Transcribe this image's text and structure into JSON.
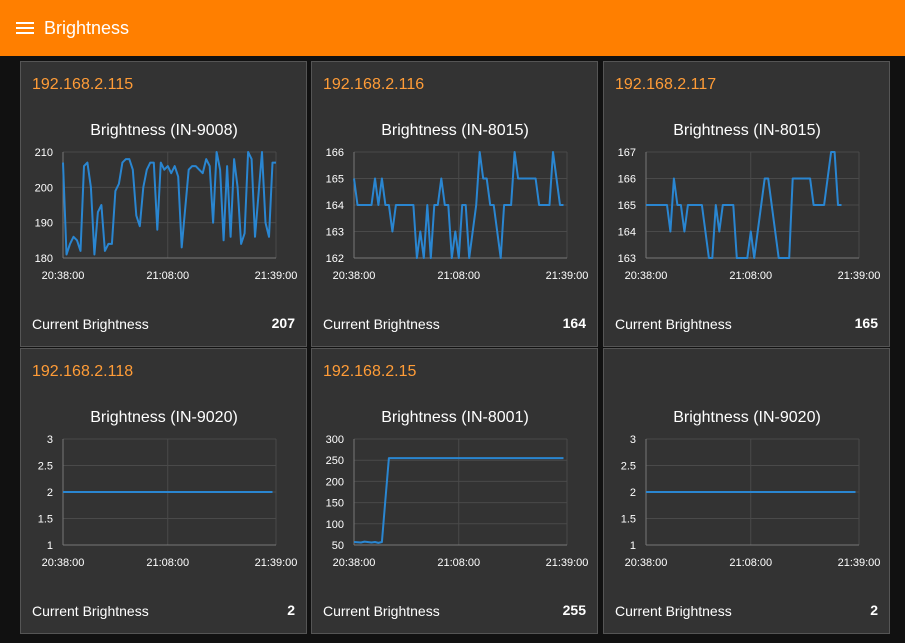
{
  "header": {
    "title": "Brightness",
    "menu_icon": "hamburger-menu-icon"
  },
  "colors": {
    "accent": "#ff7f00",
    "ip_text": "#ff9c37",
    "line": "#2a86d1",
    "card_bg": "#333333"
  },
  "cards": [
    {
      "ip": "192.168.2.115",
      "footer_label": "Current Brightness",
      "footer_value": "207"
    },
    {
      "ip": "192.168.2.116",
      "footer_label": "Current Brightness",
      "footer_value": "164"
    },
    {
      "ip": "192.168.2.117",
      "footer_label": "Current Brightness",
      "footer_value": "165"
    },
    {
      "ip": "192.168.2.118",
      "footer_label": "Current Brightness",
      "footer_value": "2"
    },
    {
      "ip": "192.168.2.15",
      "footer_label": "Current Brightness",
      "footer_value": "255"
    },
    {
      "ip": "",
      "footer_label": "Current Brightness",
      "footer_value": "2"
    }
  ],
  "chart_data": [
    {
      "type": "line",
      "title": "Brightness (IN-9008)",
      "ylim": [
        180,
        210
      ],
      "yticks": [
        180,
        190,
        200,
        210
      ],
      "xlim": [
        0,
        61
      ],
      "xticks": [
        {
          "v": 0,
          "label": "20:38:00"
        },
        {
          "v": 30,
          "label": "21:08:00"
        },
        {
          "v": 61,
          "label": "21:39:00"
        }
      ],
      "points": [
        [
          0,
          207
        ],
        [
          1,
          181
        ],
        [
          2,
          184
        ],
        [
          3,
          186
        ],
        [
          4,
          185
        ],
        [
          5,
          182
        ],
        [
          6,
          206
        ],
        [
          7,
          207
        ],
        [
          8,
          200
        ],
        [
          9,
          181
        ],
        [
          10,
          193
        ],
        [
          11,
          195
        ],
        [
          12,
          182
        ],
        [
          13,
          184
        ],
        [
          14,
          184
        ],
        [
          15,
          199
        ],
        [
          16,
          201
        ],
        [
          17,
          207
        ],
        [
          18,
          208
        ],
        [
          19,
          208
        ],
        [
          20,
          205
        ],
        [
          21,
          192
        ],
        [
          22,
          189
        ],
        [
          23,
          200
        ],
        [
          24,
          205
        ],
        [
          25,
          207
        ],
        [
          26,
          207
        ],
        [
          27,
          188
        ],
        [
          28,
          207
        ],
        [
          29,
          205
        ],
        [
          30,
          206
        ],
        [
          31,
          204
        ],
        [
          32,
          206
        ],
        [
          33,
          203
        ],
        [
          34,
          183
        ],
        [
          35,
          194
        ],
        [
          36,
          205
        ],
        [
          37,
          206
        ],
        [
          38,
          206
        ],
        [
          39,
          205
        ],
        [
          40,
          204
        ],
        [
          41,
          208
        ],
        [
          42,
          206
        ],
        [
          43,
          190
        ],
        [
          44,
          210
        ],
        [
          45,
          205
        ],
        [
          46,
          185
        ],
        [
          47,
          206
        ],
        [
          48,
          186
        ],
        [
          49,
          208
        ],
        [
          50,
          200
        ],
        [
          51,
          184
        ],
        [
          52,
          187
        ],
        [
          53,
          210
        ],
        [
          54,
          208
        ],
        [
          55,
          186
        ],
        [
          56,
          198
        ],
        [
          57,
          210
        ],
        [
          58,
          190
        ],
        [
          59,
          186
        ],
        [
          60,
          207
        ],
        [
          61,
          207
        ]
      ]
    },
    {
      "type": "line",
      "title": "Brightness (IN-8015)",
      "ylim": [
        162,
        166
      ],
      "yticks": [
        162,
        163,
        164,
        165,
        166
      ],
      "xlim": [
        0,
        61
      ],
      "xticks": [
        {
          "v": 0,
          "label": "20:38:00"
        },
        {
          "v": 30,
          "label": "21:08:00"
        },
        {
          "v": 61,
          "label": "21:39:00"
        }
      ],
      "points": [
        [
          0,
          165
        ],
        [
          1,
          164
        ],
        [
          2,
          164
        ],
        [
          3,
          164
        ],
        [
          4,
          164
        ],
        [
          5,
          164
        ],
        [
          6,
          165
        ],
        [
          7,
          164
        ],
        [
          8,
          165
        ],
        [
          9,
          164
        ],
        [
          10,
          164
        ],
        [
          11,
          163
        ],
        [
          12,
          164
        ],
        [
          13,
          164
        ],
        [
          14,
          164
        ],
        [
          15,
          164
        ],
        [
          16,
          164
        ],
        [
          17,
          164
        ],
        [
          18,
          162
        ],
        [
          19,
          163
        ],
        [
          20,
          162
        ],
        [
          21,
          164
        ],
        [
          22,
          162
        ],
        [
          23,
          164
        ],
        [
          24,
          164
        ],
        [
          25,
          165
        ],
        [
          26,
          164
        ],
        [
          27,
          164
        ],
        [
          28,
          162
        ],
        [
          29,
          163
        ],
        [
          30,
          162
        ],
        [
          31,
          164
        ],
        [
          32,
          164
        ],
        [
          33,
          162
        ],
        [
          34,
          163
        ],
        [
          35,
          164
        ],
        [
          36,
          166
        ],
        [
          37,
          165
        ],
        [
          38,
          165
        ],
        [
          39,
          164
        ],
        [
          40,
          164
        ],
        [
          41,
          163
        ],
        [
          42,
          162
        ],
        [
          43,
          164
        ],
        [
          44,
          164
        ],
        [
          45,
          164
        ],
        [
          46,
          166
        ],
        [
          47,
          165
        ],
        [
          48,
          165
        ],
        [
          49,
          165
        ],
        [
          50,
          165
        ],
        [
          51,
          165
        ],
        [
          52,
          165
        ],
        [
          53,
          164
        ],
        [
          54,
          164
        ],
        [
          55,
          164
        ],
        [
          56,
          164
        ],
        [
          57,
          166
        ],
        [
          58,
          165
        ],
        [
          59,
          164
        ],
        [
          60,
          164
        ]
      ]
    },
    {
      "type": "line",
      "title": "Brightness (IN-8015)",
      "ylim": [
        163,
        167
      ],
      "yticks": [
        163,
        164,
        165,
        166,
        167
      ],
      "xlim": [
        0,
        61
      ],
      "xticks": [
        {
          "v": 0,
          "label": "20:38:00"
        },
        {
          "v": 30,
          "label": "21:08:00"
        },
        {
          "v": 61,
          "label": "21:39:00"
        }
      ],
      "points": [
        [
          0,
          165
        ],
        [
          1,
          165
        ],
        [
          2,
          165
        ],
        [
          3,
          165
        ],
        [
          4,
          165
        ],
        [
          5,
          165
        ],
        [
          6,
          165
        ],
        [
          7,
          164
        ],
        [
          8,
          166
        ],
        [
          9,
          165
        ],
        [
          10,
          165
        ],
        [
          11,
          164
        ],
        [
          12,
          165
        ],
        [
          13,
          165
        ],
        [
          14,
          165
        ],
        [
          15,
          165
        ],
        [
          16,
          165
        ],
        [
          17,
          164
        ],
        [
          18,
          163
        ],
        [
          19,
          163
        ],
        [
          20,
          165
        ],
        [
          21,
          164
        ],
        [
          22,
          165
        ],
        [
          23,
          165
        ],
        [
          24,
          165
        ],
        [
          25,
          165
        ],
        [
          26,
          163
        ],
        [
          27,
          163
        ],
        [
          28,
          163
        ],
        [
          29,
          163
        ],
        [
          30,
          164
        ],
        [
          31,
          163
        ],
        [
          32,
          164
        ],
        [
          33,
          165
        ],
        [
          34,
          166
        ],
        [
          35,
          166
        ],
        [
          36,
          165
        ],
        [
          37,
          164
        ],
        [
          38,
          163
        ],
        [
          39,
          163
        ],
        [
          40,
          163
        ],
        [
          41,
          163
        ],
        [
          42,
          166
        ],
        [
          43,
          166
        ],
        [
          44,
          166
        ],
        [
          45,
          166
        ],
        [
          46,
          166
        ],
        [
          47,
          166
        ],
        [
          48,
          165
        ],
        [
          49,
          165
        ],
        [
          50,
          165
        ],
        [
          51,
          165
        ],
        [
          52,
          166
        ],
        [
          53,
          167
        ],
        [
          54,
          167
        ],
        [
          55,
          165
        ],
        [
          56,
          165
        ]
      ]
    },
    {
      "type": "line",
      "title": "Brightness (IN-9020)",
      "ylim": [
        1,
        3
      ],
      "yticks": [
        1,
        1.5,
        2,
        2.5,
        3
      ],
      "xlim": [
        0,
        61
      ],
      "xticks": [
        {
          "v": 0,
          "label": "20:38:00"
        },
        {
          "v": 30,
          "label": "21:08:00"
        },
        {
          "v": 61,
          "label": "21:39:00"
        }
      ],
      "points": [
        [
          0,
          2
        ],
        [
          60,
          2
        ]
      ]
    },
    {
      "type": "line",
      "title": "Brightness (IN-8001)",
      "ylim": [
        50,
        300
      ],
      "yticks": [
        50,
        100,
        150,
        200,
        250,
        300
      ],
      "xlim": [
        0,
        61
      ],
      "xticks": [
        {
          "v": 0,
          "label": "20:38:00"
        },
        {
          "v": 30,
          "label": "21:08:00"
        },
        {
          "v": 61,
          "label": "21:39:00"
        }
      ],
      "points": [
        [
          0,
          57
        ],
        [
          2,
          56
        ],
        [
          3,
          58
        ],
        [
          5,
          56
        ],
        [
          6,
          57
        ],
        [
          7,
          55
        ],
        [
          8,
          57
        ],
        [
          9,
          157
        ],
        [
          10,
          255
        ],
        [
          30,
          255
        ],
        [
          60,
          255
        ]
      ]
    },
    {
      "type": "line",
      "title": "Brightness (IN-9020)",
      "ylim": [
        1,
        3
      ],
      "yticks": [
        1,
        1.5,
        2,
        2.5,
        3
      ],
      "xlim": [
        0,
        61
      ],
      "xticks": [
        {
          "v": 0,
          "label": "20:38:00"
        },
        {
          "v": 30,
          "label": "21:08:00"
        },
        {
          "v": 61,
          "label": "21:39:00"
        }
      ],
      "points": [
        [
          0,
          2
        ],
        [
          60,
          2
        ]
      ]
    }
  ]
}
